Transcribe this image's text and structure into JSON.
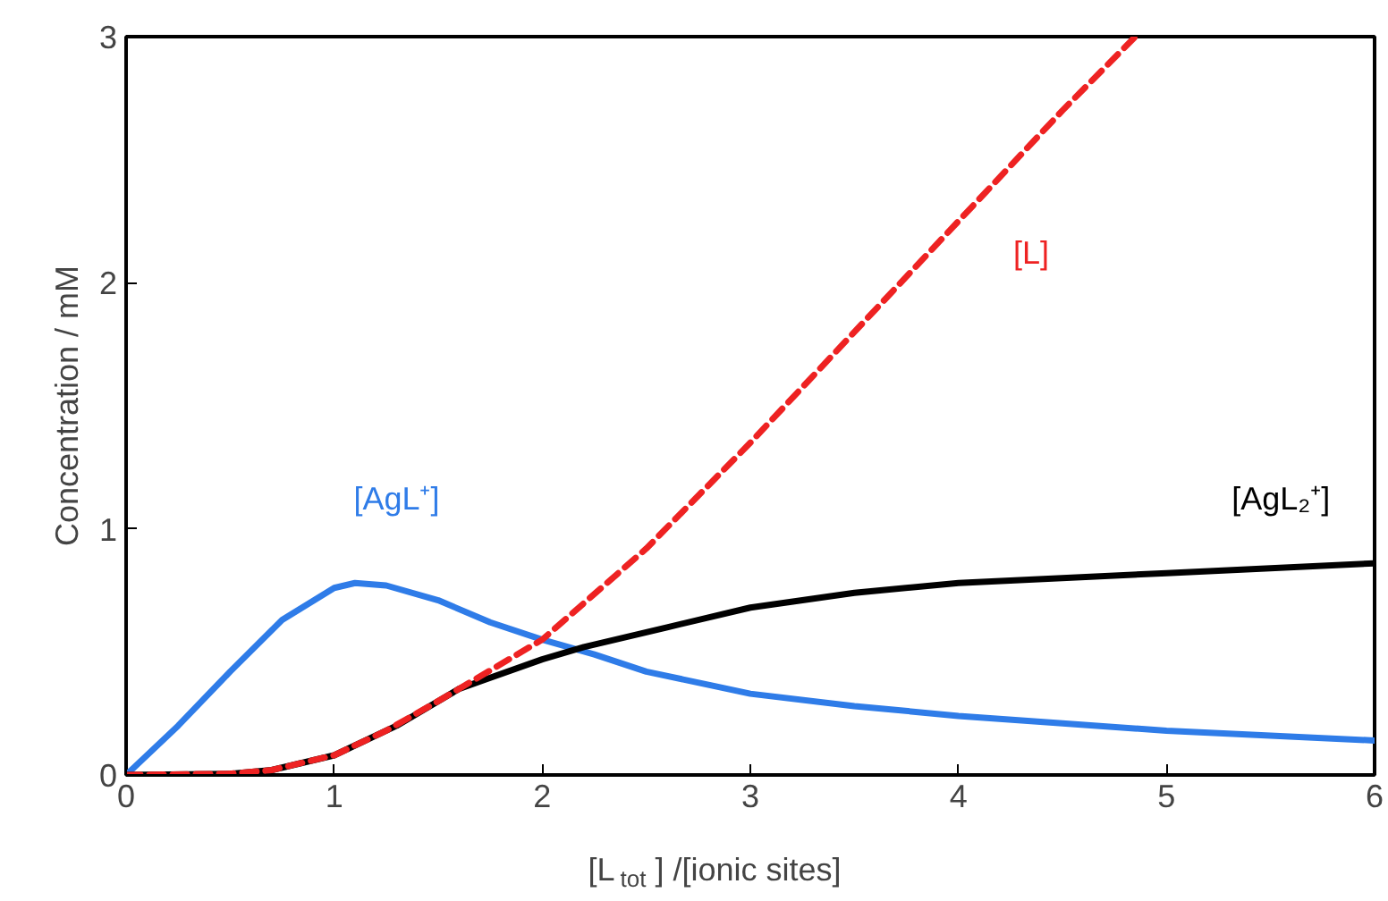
{
  "chart_data": {
    "type": "line",
    "xlabel": "[L$_{tot}$] /[ionic sites]",
    "ylabel": "Concentration / mM",
    "xlim": [
      0,
      6
    ],
    "ylim": [
      0,
      3
    ],
    "xticks": [
      0,
      1,
      2,
      3,
      4,
      5,
      6
    ],
    "yticks": [
      0,
      1,
      2,
      3
    ],
    "grid": false,
    "legend": false,
    "marker": "none",
    "series": [
      {
        "name": "[AgL⁺]",
        "color": "#2f7ce8",
        "line_style": "solid",
        "x": [
          0,
          0.25,
          0.5,
          0.75,
          1.0,
          1.1,
          1.25,
          1.5,
          1.75,
          2.0,
          2.25,
          2.5,
          3.0,
          3.5,
          4.0,
          4.5,
          5.0,
          5.5,
          6.0
        ],
        "values": [
          0,
          0.2,
          0.42,
          0.63,
          0.76,
          0.78,
          0.77,
          0.71,
          0.62,
          0.55,
          0.49,
          0.42,
          0.33,
          0.28,
          0.24,
          0.21,
          0.18,
          0.16,
          0.14
        ]
      },
      {
        "name": "[AgL₂⁺]",
        "color": "#000000",
        "line_style": "solid",
        "x": [
          0,
          0.5,
          0.7,
          0.85,
          1.0,
          1.3,
          1.6,
          2.0,
          2.2,
          2.6,
          3.0,
          3.5,
          4.0,
          5.0,
          6.0
        ],
        "values": [
          0,
          0.005,
          0.02,
          0.05,
          0.08,
          0.2,
          0.35,
          0.47,
          0.52,
          0.6,
          0.68,
          0.74,
          0.78,
          0.82,
          0.86
        ]
      },
      {
        "name": "[L]",
        "color": "#ee2222",
        "line_style": "dashed",
        "x": [
          0,
          0.5,
          0.7,
          0.85,
          1.0,
          1.25,
          1.5,
          2.0,
          2.5,
          3.0,
          3.5,
          4.0,
          4.5,
          4.85
        ],
        "values": [
          0,
          0.005,
          0.02,
          0.05,
          0.08,
          0.18,
          0.3,
          0.55,
          0.92,
          1.35,
          1.8,
          2.25,
          2.7,
          3.0
        ]
      }
    ]
  }
}
